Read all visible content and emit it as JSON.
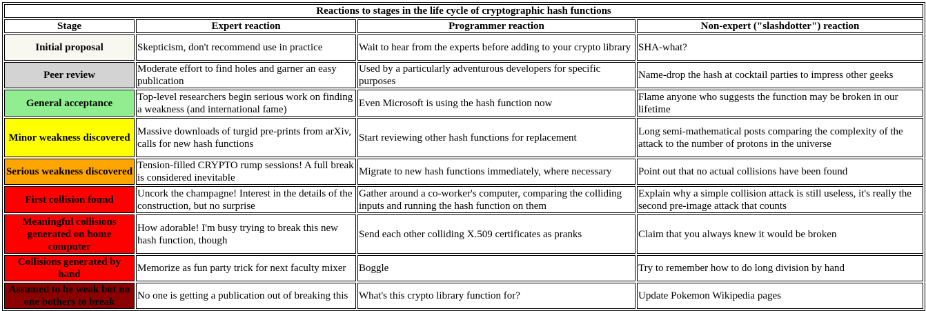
{
  "table": {
    "title": "Reactions to stages in the life cycle of cryptographic hash functions",
    "headers": [
      "Stage",
      "Expert reaction",
      "Programmer reaction",
      "Non-expert (\"slashdotter\") reaction"
    ],
    "rows": [
      {
        "stage": "Initial proposal",
        "color": "#f8f8f0",
        "text_color": "#000000",
        "expert": "Skepticism, don't recommend use in practice",
        "programmer": "Wait to hear from the experts before adding to your crypto library",
        "nonexpert": "SHA-what?"
      },
      {
        "stage": "Peer review",
        "color": "#d3d3d3",
        "text_color": "#000000",
        "expert": "Moderate effort to find holes and garner an easy publication",
        "programmer": "Used by a particularly adventurous developers for specific purposes",
        "nonexpert": "Name-drop the hash at cocktail parties to impress other geeks"
      },
      {
        "stage": "General acceptance",
        "color": "#90ee90",
        "text_color": "#000000",
        "expert": "Top-level researchers begin serious work on finding a weakness (and international fame)",
        "programmer": "Even Microsoft is using the hash function now",
        "nonexpert": "Flame anyone who suggests the function may be broken in our lifetime"
      },
      {
        "stage": "Minor weakness discovered",
        "color": "#ffff00",
        "text_color": "#000000",
        "expert": "Massive downloads of turgid pre-prints from arXiv, calls for new hash functions",
        "programmer": "Start reviewing other hash functions for replacement",
        "nonexpert": "Long semi-mathematical posts comparing the complexity of the attack to the number of protons in the universe"
      },
      {
        "stage": "Serious weakness discovered",
        "color": "#ffa500",
        "text_color": "#000000",
        "expert": "Tension-filled CRYPTO rump sessions! A full break is considered inevitable",
        "programmer": "Migrate to new hash functions immediately, where necessary",
        "nonexpert": "Point out that no actual collisions have been found"
      },
      {
        "stage": "First collision found",
        "color": "#ff0000",
        "text_color": "#000000",
        "expert": "Uncork the champagne! Interest in the details of the construction, but no surprise",
        "programmer": "Gather around a co-worker's computer, comparing the colliding inputs and running the hash function on them",
        "nonexpert": "Explain why a simple collision attack is still useless, it's really the second pre-image attack that counts"
      },
      {
        "stage": "Meaningful collisions generated on home computer",
        "color": "#ff0000",
        "text_color": "#000000",
        "expert": "How adorable! I'm busy trying to break this new hash function, though",
        "programmer": "Send each other colliding X.509 certificates as pranks",
        "nonexpert": "Claim that you always knew it would be broken"
      },
      {
        "stage": "Collisions generated by hand",
        "color": "#ff0000",
        "text_color": "#000000",
        "expert": "Memorize as fun party trick for next faculty mixer",
        "programmer": "Boggle",
        "nonexpert": "Try to remember how to do long division by hand"
      },
      {
        "stage": "Assumed to be weak but no one bothers to break",
        "color": "#8b0000",
        "text_color": "#000000",
        "expert": "No one is getting a publication out of breaking this",
        "programmer": "What's this crypto library function for?",
        "nonexpert": "Update Pokemon Wikipedia pages"
      }
    ]
  }
}
